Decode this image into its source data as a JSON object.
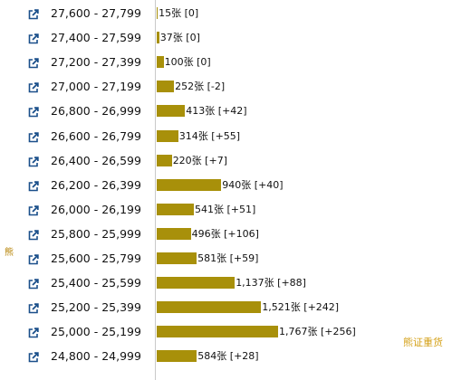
{
  "chart_data": {
    "type": "bar",
    "orientation": "horizontal",
    "unit": "张",
    "categories": [
      "27,600 - 27,799",
      "27,400 - 27,599",
      "27,200 - 27,399",
      "27,000 - 27,199",
      "26,800 - 26,999",
      "26,600 - 26,799",
      "26,400 - 26,599",
      "26,200 - 26,399",
      "26,000 - 26,199",
      "25,800 - 25,999",
      "25,600 - 25,799",
      "25,400 - 25,599",
      "25,200 - 25,399",
      "25,000 - 25,199",
      "24,800 - 24,999"
    ],
    "values": [
      15,
      37,
      100,
      252,
      413,
      314,
      220,
      940,
      541,
      496,
      581,
      1137,
      1521,
      1767,
      584
    ],
    "labels": [
      "15张 [0]",
      "37张 [0]",
      "100张 [0]",
      "252张 [-2]",
      "413张 [+42]",
      "314张 [+55]",
      "220张 [+7]",
      "940张 [+40]",
      "541张 [+51]",
      "496张 [+106]",
      "581张 [+59]",
      "1,137张 [+88]",
      "1,521张 [+242]",
      "1,767张 [+256]",
      "584张 [+28]"
    ],
    "bar_color": "#a8900a",
    "xlim": [
      0,
      1767
    ],
    "grid": false
  },
  "icon": "external-link-icon",
  "side_mark": "熊",
  "watermark": "熊证重货"
}
